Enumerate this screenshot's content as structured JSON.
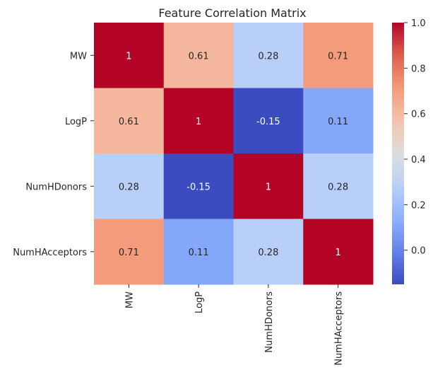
{
  "chart_data": {
    "type": "heatmap",
    "title": "Feature Correlation Matrix",
    "row_labels": [
      "MW",
      "LogP",
      "NumHDonors",
      "NumHAcceptors"
    ],
    "col_labels": [
      "MW",
      "LogP",
      "NumHDonors",
      "NumHAcceptors"
    ],
    "values": [
      [
        1,
        0.61,
        0.28,
        0.71
      ],
      [
        0.61,
        1,
        -0.15,
        0.11
      ],
      [
        0.28,
        -0.15,
        1,
        0.28
      ],
      [
        0.71,
        0.11,
        0.28,
        1
      ]
    ],
    "cell_labels": [
      [
        "1",
        "0.61",
        "0.28",
        "0.71"
      ],
      [
        "0.61",
        "1",
        "-0.15",
        "0.11"
      ],
      [
        "0.28",
        "-0.15",
        "1",
        "0.28"
      ],
      [
        "0.71",
        "0.11",
        "0.28",
        "1"
      ]
    ],
    "colormap": "coolwarm",
    "vmin": -0.15,
    "vmax": 1,
    "colorbar_ticks": [
      0.0,
      0.2,
      0.4,
      0.6,
      0.8,
      1.0
    ],
    "colorbar_tick_labels": [
      "0.0",
      "0.2",
      "0.4",
      "0.6",
      "0.8",
      "1.0"
    ],
    "xlabel": "",
    "ylabel": ""
  }
}
